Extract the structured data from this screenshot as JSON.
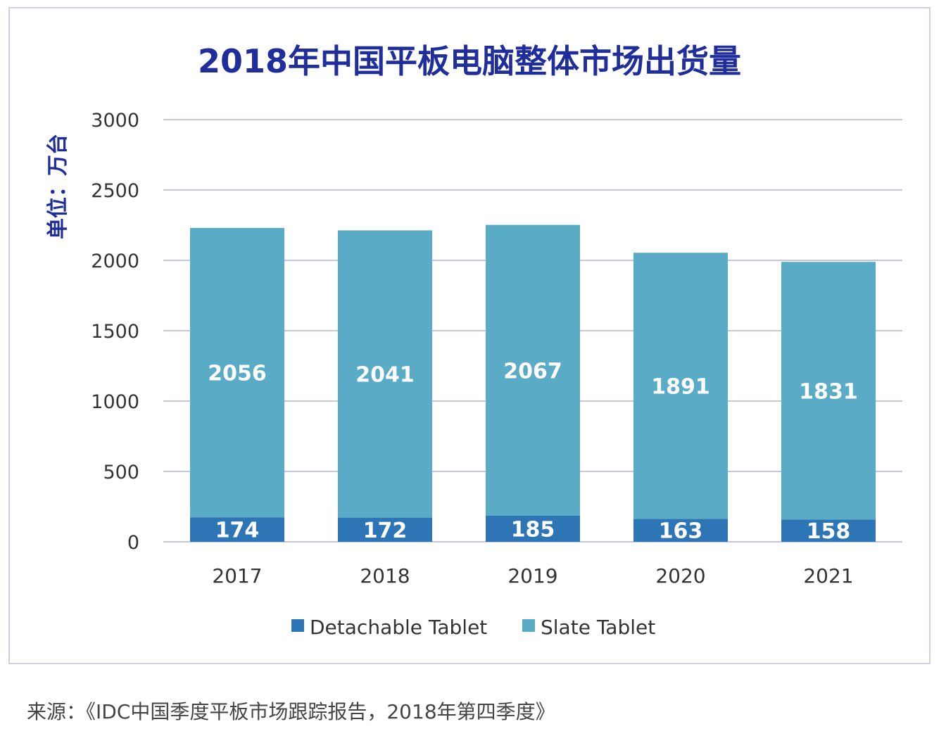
{
  "chart_data": {
    "type": "bar",
    "stacked": true,
    "title": "2018年中国平板电脑整体市场出货量",
    "ylabel": "单位：万台",
    "xlabel": "",
    "categories": [
      "2017",
      "2018",
      "2019",
      "2020",
      "2021"
    ],
    "series": [
      {
        "name": "Detachable Tablet",
        "values": [
          174,
          172,
          185,
          163,
          158
        ],
        "color": "#2e75b6"
      },
      {
        "name": "Slate Tablet",
        "values": [
          2056,
          2041,
          2067,
          1891,
          1831
        ],
        "color": "#5aabc6"
      }
    ],
    "ylim": [
      0,
      3000
    ],
    "yticks": [
      0,
      500,
      1000,
      1500,
      2000,
      2500,
      3000
    ],
    "grid": true,
    "legend": "bottom"
  },
  "colors": {
    "title": "#1f2e9a",
    "axis_text": "#333333",
    "gridline": "#c5c6e6",
    "ylabel": "#1f2e9a"
  },
  "source": "来源：《IDC中国季度平板市场跟踪报告，2018年第四季度》"
}
